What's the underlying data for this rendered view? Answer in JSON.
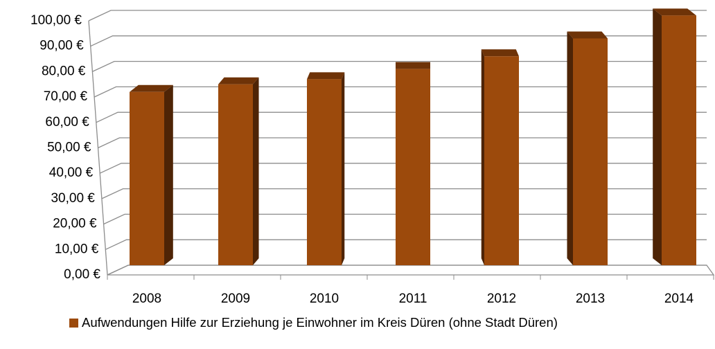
{
  "chart_data": {
    "type": "bar3d",
    "categories": [
      "2008",
      "2009",
      "2010",
      "2011",
      "2012",
      "2013",
      "2014"
    ],
    "series": [
      {
        "name": "Aufwendungen Hilfe zur Erziehung je Einwohner im Kreis Düren (ohne Stadt Düren)",
        "color": "#9c4a0c",
        "values": [
          68,
          71,
          73,
          77,
          82,
          89,
          98
        ]
      }
    ],
    "ylim": [
      0,
      100
    ],
    "yticks": [
      {
        "value": 0,
        "label": "0,00 €"
      },
      {
        "value": 10,
        "label": "10,00 €"
      },
      {
        "value": 20,
        "label": "20,00 €"
      },
      {
        "value": 30,
        "label": "30,00 €"
      },
      {
        "value": 40,
        "label": "40,00 €"
      },
      {
        "value": 50,
        "label": "50,00 €"
      },
      {
        "value": 60,
        "label": "60,00 €"
      },
      {
        "value": 70,
        "label": "70,00 €"
      },
      {
        "value": 80,
        "label": "80,00 €"
      },
      {
        "value": 90,
        "label": "90,00 €"
      },
      {
        "value": 100,
        "label": "100,00 €"
      }
    ],
    "grid": true,
    "legend": "bottom"
  }
}
